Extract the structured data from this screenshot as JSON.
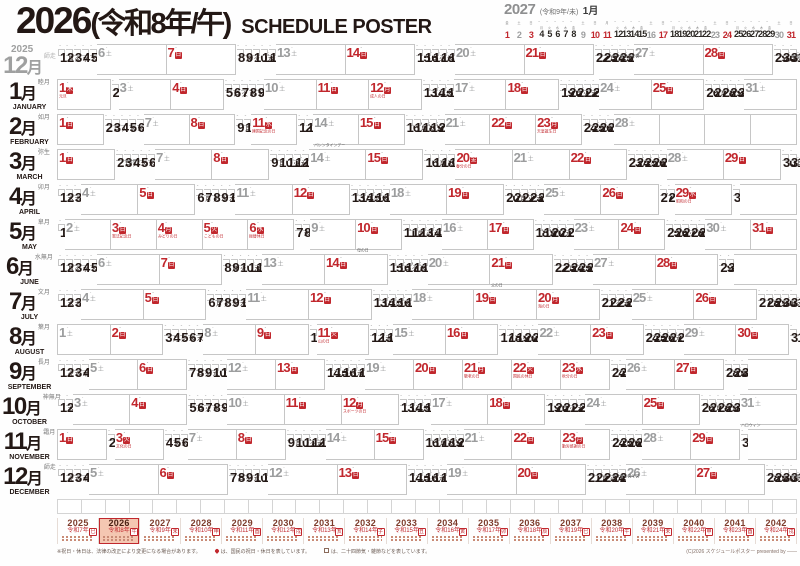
{
  "colors": {
    "accent_red": "#c1272d",
    "saturday_gray": "#9c9d9e",
    "ink_black": "#231815",
    "highlight_pink": "#f4c7b2"
  },
  "header": {
    "title_year": "2026",
    "title_era": "(令和8年/午)",
    "title_en": "SCHEDULE POSTER",
    "next_year": {
      "year": "2027",
      "era": "(令和9年/未)",
      "month_label": "1月",
      "start": 4,
      "len": 31,
      "holidays": [
        1,
        11
      ]
    }
  },
  "weekday_chars": [
    "月",
    "火",
    "水",
    "木",
    "金",
    "土",
    "日"
  ],
  "months": [
    {
      "year": "2025",
      "label": "12",
      "suffix": "月",
      "wafu": "師走",
      "en": "",
      "muted": true,
      "start": 0,
      "len": 31,
      "holidays": {},
      "notes": {
        "24": "クリスマスイブ",
        "25": "クリスマス",
        "31": "大晦日"
      }
    },
    {
      "label": "1",
      "suffix": "月",
      "wafu": "睦月",
      "en": "JANUARY",
      "start": 3,
      "len": 31,
      "holidays": {
        "1": "元旦",
        "12": "成人の日"
      },
      "notes": {}
    },
    {
      "label": "2",
      "suffix": "月",
      "wafu": "如月",
      "en": "FEBRUARY",
      "start": 6,
      "len": 28,
      "holidays": {
        "11": "建国記念の日",
        "23": "天皇誕生日"
      },
      "notes": {
        "14": "バレンタインデー"
      }
    },
    {
      "label": "3",
      "suffix": "月",
      "wafu": "弥生",
      "en": "MARCH",
      "start": 6,
      "len": 31,
      "holidays": {
        "20": "春分の日"
      },
      "notes": {
        "3": "ひな祭り"
      }
    },
    {
      "label": "4",
      "suffix": "月",
      "wafu": "卯月",
      "en": "APRIL",
      "start": 2,
      "len": 30,
      "holidays": {
        "29": "昭和の日"
      },
      "notes": {}
    },
    {
      "label": "5",
      "suffix": "月",
      "wafu": "皐月",
      "en": "MAY",
      "start": 4,
      "len": 31,
      "holidays": {
        "3": "憲法記念日",
        "4": "みどりの日",
        "5": "こどもの日",
        "6": "振替休日"
      },
      "notes": {
        "10": "母の日"
      }
    },
    {
      "label": "6",
      "suffix": "月",
      "wafu": "水無月",
      "en": "JUNE",
      "start": 0,
      "len": 30,
      "holidays": {},
      "notes": {
        "21": "父の日"
      }
    },
    {
      "label": "7",
      "suffix": "月",
      "wafu": "文月",
      "en": "JULY",
      "start": 2,
      "len": 31,
      "holidays": {
        "20": "海の日"
      },
      "notes": {
        "7": "七夕"
      }
    },
    {
      "label": "8",
      "suffix": "月",
      "wafu": "葉月",
      "en": "AUGUST",
      "start": 5,
      "len": 31,
      "holidays": {
        "11": "山の日"
      },
      "notes": {}
    },
    {
      "label": "9",
      "suffix": "月",
      "wafu": "長月",
      "en": "SEPTEMBER",
      "start": 1,
      "len": 30,
      "holidays": {
        "21": "敬老の日",
        "22": "国民の休日",
        "23": "秋分の日"
      },
      "notes": {}
    },
    {
      "label": "10",
      "suffix": "月",
      "wafu": "神無月",
      "en": "OCTOBER",
      "start": 3,
      "len": 31,
      "holidays": {
        "12": "スポーツの日"
      },
      "notes": {
        "31": "ハロウィン"
      }
    },
    {
      "label": "11",
      "suffix": "月",
      "wafu": "霜月",
      "en": "NOVEMBER",
      "start": 6,
      "len": 30,
      "holidays": {
        "3": "文化の日",
        "23": "勤労感謝の日"
      },
      "notes": {}
    },
    {
      "label": "12",
      "suffix": "月",
      "wafu": "師走",
      "en": "DECEMBER",
      "start": 1,
      "len": 31,
      "holidays": {},
      "notes": {
        "24": "クリスマスイブ",
        "25": "クリスマス",
        "31": "大晦日"
      }
    }
  ],
  "year_strip": [
    {
      "year": "2025",
      "era": "令和7年",
      "eto": "巳"
    },
    {
      "year": "2026",
      "era": "令和8年",
      "eto": "午",
      "current": true
    },
    {
      "year": "2027",
      "era": "令和9年",
      "eto": "未"
    },
    {
      "year": "2028",
      "era": "令和10年",
      "eto": "申"
    },
    {
      "year": "2029",
      "era": "令和11年",
      "eto": "酉"
    },
    {
      "year": "2030",
      "era": "令和12年",
      "eto": "戌"
    },
    {
      "year": "2031",
      "era": "令和13年",
      "eto": "亥"
    },
    {
      "year": "2032",
      "era": "令和14年",
      "eto": "子"
    },
    {
      "year": "2033",
      "era": "令和15年",
      "eto": "丑"
    },
    {
      "year": "2034",
      "era": "令和16年",
      "eto": "寅"
    },
    {
      "year": "2035",
      "era": "令和17年",
      "eto": "卯"
    },
    {
      "year": "2036",
      "era": "令和18年",
      "eto": "辰"
    },
    {
      "year": "2037",
      "era": "令和19年",
      "eto": "巳"
    },
    {
      "year": "2038",
      "era": "令和20年",
      "eto": "午"
    },
    {
      "year": "2039",
      "era": "令和21年",
      "eto": "未"
    },
    {
      "year": "2040",
      "era": "令和22年",
      "eto": "申"
    },
    {
      "year": "2041",
      "era": "令和23年",
      "eto": "酉"
    },
    {
      "year": "2042",
      "era": "令和24年",
      "eto": "戌"
    }
  ],
  "footer": {
    "note_left": "※祝日・休日は、法律の改正により変更になる場合があります。",
    "legend_holiday": "は、国民の祝日・休日を表しています。",
    "legend_terms": "は、二十四節気・雑節などを表しています。",
    "copyright": "(C)2026 スケジュールポスター presented by ――"
  }
}
